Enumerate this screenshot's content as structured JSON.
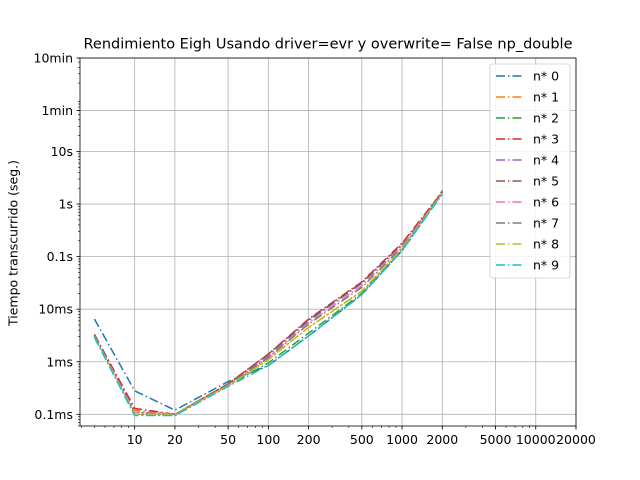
{
  "chart_data": {
    "type": "line",
    "title": "Rendimiento   Eigh Usando driver=evr y overwrite= False np_double",
    "xlabel": "",
    "ylabel": "Tiempo transcurrido (seg.)",
    "x_scale": "log",
    "y_scale": "log",
    "xlim": [
      3.9,
      20000
    ],
    "ylim": [
      6e-05,
      600
    ],
    "grid": true,
    "legend_position": "top-right",
    "x_ticks": [
      {
        "value": 10,
        "label": "10"
      },
      {
        "value": 20,
        "label": "20"
      },
      {
        "value": 50,
        "label": "50"
      },
      {
        "value": 100,
        "label": "100"
      },
      {
        "value": 200,
        "label": "200"
      },
      {
        "value": 500,
        "label": "500"
      },
      {
        "value": 1000,
        "label": "1000"
      },
      {
        "value": 2000,
        "label": "2000"
      },
      {
        "value": 5000,
        "label": "5000"
      },
      {
        "value": 10000,
        "label": "10000"
      },
      {
        "value": 20000,
        "label": "20000"
      }
    ],
    "y_ticks": [
      {
        "value": 0.0001,
        "label": "0.1ms"
      },
      {
        "value": 0.001,
        "label": "1ms"
      },
      {
        "value": 0.01,
        "label": "10ms"
      },
      {
        "value": 0.1,
        "label": "0.1s"
      },
      {
        "value": 1,
        "label": "1s"
      },
      {
        "value": 10,
        "label": "10s"
      },
      {
        "value": 60,
        "label": "1min"
      },
      {
        "value": 600,
        "label": "10min"
      }
    ],
    "x": [
      5,
      10,
      20,
      50,
      100,
      200,
      500,
      1000,
      2000
    ],
    "series": [
      {
        "name": "n* 0",
        "color": "#1f77b4",
        "values": [
          0.0065,
          0.00028,
          0.00012,
          0.00042,
          0.00085,
          0.0031,
          0.019,
          0.13,
          1.6
        ]
      },
      {
        "name": "n* 1",
        "color": "#ff7f0e",
        "values": [
          0.0033,
          0.00012,
          0.0001,
          0.00035,
          0.0011,
          0.0045,
          0.022,
          0.14,
          1.7
        ]
      },
      {
        "name": "n* 2",
        "color": "#2ca02c",
        "values": [
          0.0029,
          0.0001,
          9.5e-05,
          0.00035,
          0.00095,
          0.0035,
          0.02,
          0.14,
          1.8
        ]
      },
      {
        "name": "n* 3",
        "color": "#d62728",
        "values": [
          0.0033,
          0.00013,
          0.0001,
          0.00038,
          0.0014,
          0.0065,
          0.033,
          0.18,
          1.7
        ]
      },
      {
        "name": "n* 4",
        "color": "#9467bd",
        "values": [
          0.0032,
          0.00011,
          0.0001,
          0.00037,
          0.0013,
          0.006,
          0.031,
          0.17,
          1.6
        ]
      },
      {
        "name": "n* 5",
        "color": "#8c564b",
        "values": [
          0.0033,
          0.00011,
          0.0001,
          0.00038,
          0.0014,
          0.0063,
          0.032,
          0.17,
          1.6
        ]
      },
      {
        "name": "n* 6",
        "color": "#e377c2",
        "values": [
          0.0031,
          0.00011,
          0.0001,
          0.00036,
          0.0012,
          0.0055,
          0.028,
          0.16,
          1.6
        ]
      },
      {
        "name": "n* 7",
        "color": "#7f7f7f",
        "values": [
          0.0031,
          0.0001,
          0.0001,
          0.00036,
          0.0012,
          0.0052,
          0.026,
          0.15,
          1.6
        ]
      },
      {
        "name": "n* 8",
        "color": "#bcbd22",
        "values": [
          0.003,
          0.0001,
          0.0001,
          0.00035,
          0.0011,
          0.0045,
          0.022,
          0.14,
          1.6
        ]
      },
      {
        "name": "n* 9",
        "color": "#17becf",
        "values": [
          0.0029,
          9.5e-05,
          9.5e-05,
          0.00034,
          0.00085,
          0.0031,
          0.019,
          0.13,
          1.55
        ]
      }
    ]
  }
}
